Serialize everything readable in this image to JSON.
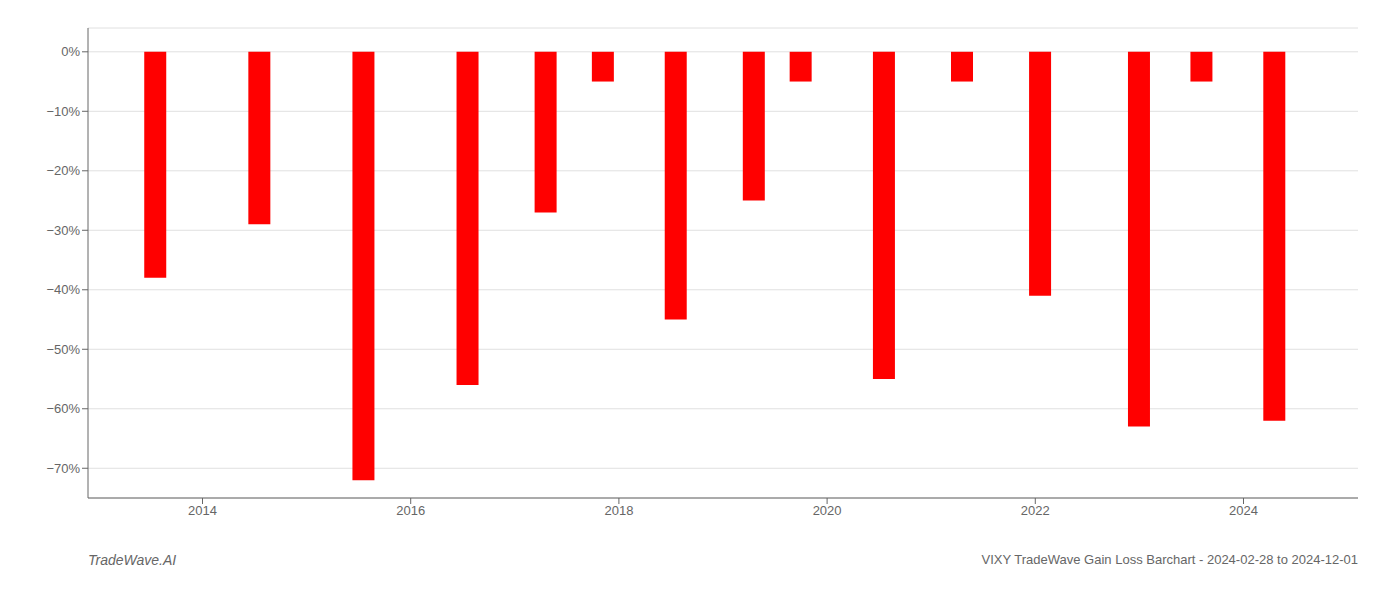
{
  "chart_data": {
    "type": "bar",
    "x": [
      2013.55,
      2014.55,
      2015.55,
      2016.55,
      2017.3,
      2017.85,
      2018.55,
      2019.3,
      2019.75,
      2020.55,
      2021.3,
      2022.05,
      2023.0,
      2023.6,
      2024.3
    ],
    "values": [
      -38,
      -29,
      -72,
      -56,
      -27,
      -5,
      -45,
      -25,
      -5,
      -55,
      -5,
      -41,
      -63,
      -5,
      -62
    ],
    "color": "#ff0000",
    "xlim": [
      2012.9,
      2025.1
    ],
    "xticks": [
      2014,
      2016,
      2018,
      2020,
      2022,
      2024
    ],
    "ylim": [
      -75,
      4
    ],
    "yticks": [
      {
        "value": 0,
        "label": "0%"
      },
      {
        "value": -10,
        "label": "−10%"
      },
      {
        "value": -20,
        "label": "−20%"
      },
      {
        "value": -30,
        "label": "−30%"
      },
      {
        "value": -40,
        "label": "−40%"
      },
      {
        "value": -50,
        "label": "−50%"
      },
      {
        "value": -60,
        "label": "−60%"
      },
      {
        "value": -70,
        "label": "−70%"
      }
    ],
    "grid": true,
    "annotations": [
      "TradeWave.AI",
      "VIXY TradeWave Gain Loss Barchart - 2024-02-28 to 2024-12-01"
    ]
  }
}
